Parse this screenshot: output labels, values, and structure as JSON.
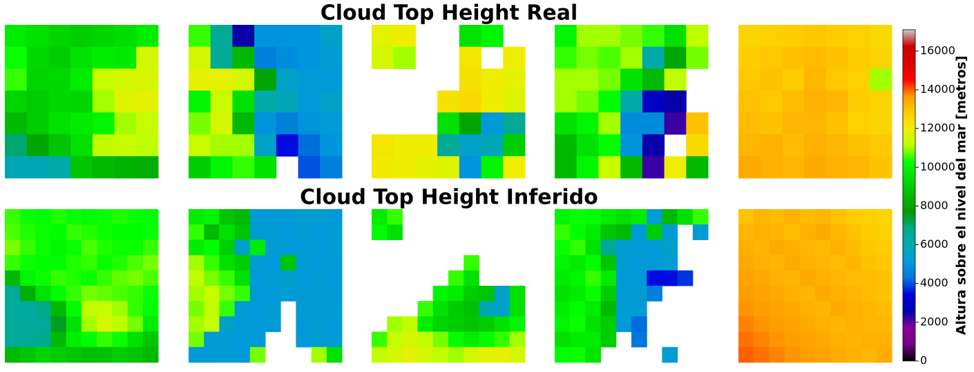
{
  "chart_data": {
    "type": "heatmap",
    "rows": [
      {
        "title": "Cloud Top Height Real",
        "panels": [
          [
            [
              9800,
              9500,
              9200,
              9000,
              9200,
              9400,
              9800
            ],
            [
              10300,
              9300,
              9000,
              9500,
              9800,
              9700,
              11500
            ],
            [
              10500,
              9200,
              9300,
              9800,
              11300,
              11500,
              11600
            ],
            [
              9200,
              9000,
              9300,
              9200,
              11000,
              11700,
              11800
            ],
            [
              8500,
              9000,
              9500,
              9800,
              10000,
              11000,
              11300
            ],
            [
              7000,
              8000,
              8800,
              9500,
              11200,
              11300,
              11200
            ],
            [
              5800,
              5800,
              6000,
              8800,
              8500,
              8300,
              8200
            ]
          ],
          [
            [
              10500,
              6500,
              2500,
              5000,
              5000,
              5000,
              5500
            ],
            [
              11500,
              6500,
              8500,
              4500,
              4800,
              5000,
              5300
            ],
            [
              11800,
              11800,
              11500,
              8000,
              5500,
              5200,
              5200
            ],
            [
              10000,
              11300,
              9500,
              6000,
              5800,
              5200,
              5500
            ],
            [
              10800,
              11500,
              8500,
              5000,
              4500,
              5000,
              5200
            ],
            [
              11300,
              11000,
              11000,
              5500,
              3500,
              4200,
              5000
            ],
            [
              9000,
              10000,
              10500,
              9500,
              null,
              4000,
              4500
            ]
          ],
          [
            [
              11800,
              12000,
              null,
              null,
              9500,
              10000,
              null
            ],
            [
              11500,
              11000,
              null,
              null,
              12200,
              null,
              12000
            ],
            [
              null,
              null,
              null,
              null,
              12300,
              12000,
              11800
            ],
            [
              null,
              null,
              null,
              12300,
              12500,
              12000,
              11700
            ],
            [
              null,
              null,
              null,
              9500,
              8000,
              5200,
              6500
            ],
            [
              12200,
              12000,
              12000,
              6500,
              5500,
              5800,
              9000
            ],
            [
              12100,
              12000,
              11800,
              11700,
              5000,
              10000,
              12000
            ]
          ],
          [
            [
              10000,
              11000,
              11000,
              10800,
              10500,
              9500,
              11200
            ],
            [
              10500,
              10800,
              10600,
              11000,
              6000,
              8000,
              10800
            ],
            [
              11000,
              11000,
              10800,
              9500,
              8500,
              11200,
              null
            ],
            [
              11000,
              10800,
              10200,
              6000,
              3000,
              2500,
              null
            ],
            [
              9500,
              10000,
              11000,
              4800,
              4800,
              2200,
              13000
            ],
            [
              8500,
              9500,
              10200,
              5000,
              2500,
              null,
              12500
            ],
            [
              8500,
              10000,
              11300,
              8500,
              2200,
              12000,
              8500
            ]
          ],
          [
            [
              12600,
              12700,
              12800,
              12900,
              12800,
              12700,
              12500
            ],
            [
              12800,
              12900,
              13000,
              13100,
              13000,
              12800,
              12600
            ],
            [
              12900,
              13000,
              12800,
              13200,
              12900,
              12700,
              11000
            ],
            [
              13000,
              12900,
              13100,
              13300,
              13200,
              12800,
              12600
            ],
            [
              13100,
              13000,
              13200,
              13200,
              13000,
              12700,
              12600
            ],
            [
              13200,
              13300,
              13100,
              13300,
              13200,
              13000,
              12900
            ],
            [
              13400,
              13300,
              13200,
              13400,
              13300,
              13200,
              13000
            ]
          ]
        ]
      },
      {
        "title": "Cloud Top Height Inferido",
        "panels": [
          [
            [
              10500,
              10300,
              10200,
              10400,
              10300,
              10200,
              10300,
              10400,
              10300,
              10200
            ],
            [
              10600,
              10400,
              10300,
              10200,
              10500,
              10400,
              10300,
              10200,
              10200,
              10300
            ],
            [
              10800,
              10500,
              10300,
              10100,
              10300,
              10600,
              10400,
              10300,
              10300,
              10500
            ],
            [
              10500,
              10300,
              10200,
              10200,
              10400,
              10500,
              10300,
              10400,
              10600,
              10800
            ],
            [
              8500,
              10000,
              10300,
              10500,
              10400,
              10300,
              10500,
              10700,
              10800,
              10600
            ],
            [
              6500,
              8200,
              9500,
              10200,
              10500,
              10800,
              10700,
              10600,
              10500,
              10300
            ],
            [
              6300,
              6200,
              6800,
              8500,
              10200,
              11200,
              11300,
              11000,
              10500,
              10200
            ],
            [
              6500,
              6300,
              6400,
              7500,
              9500,
              11000,
              11500,
              11200,
              10800,
              9800
            ],
            [
              6400,
              6500,
              6600,
              8500,
              9800,
              10200,
              10500,
              10300,
              9500,
              8800
            ],
            [
              8500,
              8800,
              9200,
              9000,
              8800,
              8600,
              8700,
              9000,
              8800,
              8500
            ]
          ],
          [
            [
              9800,
              10000,
              8800,
              8500,
              5200,
              5200,
              5200,
              5300,
              5300,
              5200
            ],
            [
              10500,
              8500,
              9500,
              8800,
              5300,
              5300,
              5200,
              5300,
              5200,
              5300
            ],
            [
              9800,
              10200,
              9000,
              5500,
              9800,
              5300,
              5200,
              5200,
              5200,
              5300
            ],
            [
              11000,
              10500,
              9500,
              9000,
              5300,
              5200,
              8800,
              5300,
              5200,
              5200
            ],
            [
              11200,
              10800,
              10500,
              9500,
              5200,
              5300,
              5400,
              5200,
              5300,
              5200
            ],
            [
              11000,
              11300,
              10800,
              10500,
              5200,
              5200,
              5300,
              5300,
              5300,
              5200
            ],
            [
              10800,
              11200,
              10500,
              5300,
              5200,
              5300,
              null,
              5300,
              5200,
              5300
            ],
            [
              11000,
              11300,
              5500,
              5200,
              5200,
              5300,
              null,
              5200,
              5300,
              5200
            ],
            [
              10800,
              5300,
              5300,
              5200,
              5200,
              null,
              null,
              5200,
              5300,
              5300
            ],
            [
              5200,
              5200,
              5300,
              5200,
              10800,
              null,
              null,
              null,
              11000,
              9500
            ]
          ],
          [
            [
              9800,
              10500,
              null,
              null,
              null,
              null,
              null,
              null,
              null,
              null
            ],
            [
              10200,
              9500,
              null,
              null,
              null,
              null,
              null,
              null,
              null,
              null
            ],
            [
              null,
              null,
              null,
              null,
              null,
              null,
              null,
              null,
              null,
              null
            ],
            [
              null,
              null,
              null,
              null,
              null,
              null,
              10500,
              null,
              null,
              null
            ],
            [
              null,
              null,
              null,
              null,
              null,
              10500,
              9500,
              null,
              null,
              null
            ],
            [
              null,
              null,
              null,
              null,
              10000,
              9800,
              9000,
              8800,
              5500,
              9500
            ],
            [
              null,
              null,
              null,
              10500,
              9500,
              9000,
              8700,
              5800,
              5500,
              9500
            ],
            [
              null,
              11000,
              11200,
              9800,
              9200,
              9000,
              8800,
              9000,
              9500,
              10000
            ],
            [
              10500,
              11300,
              11500,
              11200,
              10800,
              10200,
              9800,
              10200,
              10500,
              11000
            ],
            [
              11200,
              11500,
              11800,
              11500,
              11200,
              11000,
              11500,
              11800,
              11800,
              11500
            ]
          ],
          [
            [
              10000,
              10300,
              10200,
              9800,
              9500,
              9800,
              5300,
              8500,
              9500,
              10500
            ],
            [
              10500,
              10200,
              9800,
              8800,
              8500,
              5200,
              9000,
              5300,
              null,
              5300
            ],
            [
              10300,
              10500,
              9500,
              6500,
              5300,
              5300,
              5200,
              5500,
              null,
              null
            ],
            [
              10000,
              9800,
              10200,
              8800,
              5300,
              5200,
              5200,
              5300,
              null,
              null
            ],
            [
              9800,
              10000,
              10500,
              9800,
              5200,
              5200,
              3500,
              3500,
              3800,
              null
            ],
            [
              9500,
              9800,
              10300,
              9000,
              5300,
              5300,
              4500,
              null,
              null,
              null
            ],
            [
              9800,
              10200,
              9800,
              8500,
              5300,
              5300,
              null,
              null,
              null,
              null
            ],
            [
              10000,
              10300,
              9500,
              9000,
              5200,
              4200,
              null,
              null,
              null,
              null
            ],
            [
              9500,
              9800,
              9800,
              9000,
              null,
              4300,
              null,
              null,
              null,
              null
            ],
            [
              10200,
              10300,
              9600,
              null,
              null,
              null,
              null,
              5300,
              null,
              null
            ]
          ],
          [
            [
              13000,
              13200,
              13100,
              13300,
              13100,
              13200,
              13000,
              12800,
              12700,
              12600
            ],
            [
              13200,
              13300,
              13200,
              13100,
              13300,
              13400,
              13200,
              13000,
              12800,
              12700
            ],
            [
              13300,
              13200,
              13400,
              13300,
              13200,
              13100,
              13300,
              13100,
              12900,
              12800
            ],
            [
              13400,
              13300,
              13200,
              13400,
              13300,
              13200,
              13100,
              13200,
              13000,
              12900
            ],
            [
              13500,
              13400,
              13300,
              13200,
              13400,
              13300,
              13200,
              13100,
              13100,
              13000
            ],
            [
              13600,
              13500,
              13400,
              13300,
              13200,
              13400,
              13300,
              13200,
              13100,
              13000
            ],
            [
              13700,
              13600,
              13500,
              13400,
              13300,
              13200,
              13400,
              13300,
              13200,
              13100
            ],
            [
              13800,
              13700,
              13600,
              13500,
              13400,
              13300,
              13200,
              13300,
              13200,
              13200
            ],
            [
              13900,
              13800,
              13700,
              13600,
              13500,
              13400,
              13300,
              13200,
              13300,
              13300
            ],
            [
              14000,
              13900,
              13800,
              13700,
              13600,
              13500,
              13400,
              13300,
              13200,
              13400
            ]
          ]
        ]
      }
    ],
    "colorbar": {
      "label": "Altura sobre el nivel del mar [metros]",
      "zlim": [
        0,
        17100
      ],
      "zticks": [
        0,
        2000,
        4000,
        6000,
        8000,
        10000,
        12000,
        14000,
        16000
      ],
      "colors": [
        "#000000",
        "#770088",
        "#880099",
        "#0000aa",
        "#0000dd",
        "#0077dd",
        "#0099dd",
        "#00aaaa",
        "#00aa88",
        "#009900",
        "#00bb00",
        "#00dd00",
        "#00ff00",
        "#bbff00",
        "#eeee00",
        "#ffcc00",
        "#ff9900",
        "#ff0000",
        "#dd0000",
        "#cc0000",
        "#cccccc"
      ]
    }
  }
}
